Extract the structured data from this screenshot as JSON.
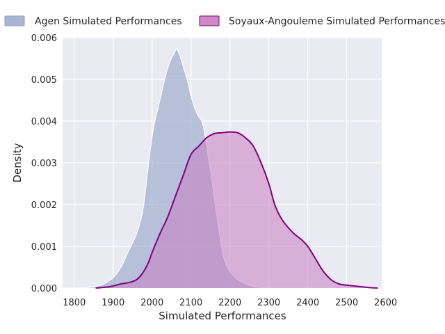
{
  "chart_data": {
    "type": "area",
    "title": "",
    "xlabel": "Simulated Performances",
    "ylabel": "Density",
    "xlim": [
      1770,
      2590
    ],
    "ylim": [
      0,
      0.006
    ],
    "x_ticks": [
      1800,
      1900,
      2000,
      2100,
      2200,
      2300,
      2400,
      2500,
      2600
    ],
    "y_ticks": [
      0,
      0.001,
      0.002,
      0.003,
      0.004,
      0.005,
      0.006
    ],
    "x_tick_labels": [
      "1800",
      "1900",
      "2000",
      "2100",
      "2200",
      "2300",
      "2400",
      "2500",
      "2600"
    ],
    "y_tick_labels": [
      "0.000",
      "0.001",
      "0.002",
      "0.003",
      "0.004",
      "0.005",
      "0.006"
    ],
    "grid": true,
    "legend_position": "top",
    "series": [
      {
        "name": "Agen Simulated Performances",
        "color": "#8b9dc3",
        "line_color": "#ffffff",
        "points": [
          [
            1805,
            0
          ],
          [
            1830,
            1e-05
          ],
          [
            1860,
            5e-05
          ],
          [
            1880,
            0.00012
          ],
          [
            1900,
            0.00025
          ],
          [
            1920,
            0.0005
          ],
          [
            1940,
            0.0009
          ],
          [
            1960,
            0.0013
          ],
          [
            1975,
            0.0018
          ],
          [
            1985,
            0.0025
          ],
          [
            1995,
            0.0033
          ],
          [
            2005,
            0.0039
          ],
          [
            2015,
            0.0043
          ],
          [
            2025,
            0.0047
          ],
          [
            2035,
            0.0051
          ],
          [
            2045,
            0.0054
          ],
          [
            2055,
            0.0056
          ],
          [
            2063,
            0.00572
          ],
          [
            2070,
            0.0056
          ],
          [
            2080,
            0.0053
          ],
          [
            2090,
            0.005
          ],
          [
            2100,
            0.0046
          ],
          [
            2110,
            0.0043
          ],
          [
            2120,
            0.0041
          ],
          [
            2128,
            0.004
          ],
          [
            2135,
            0.0037
          ],
          [
            2145,
            0.0031
          ],
          [
            2155,
            0.0025
          ],
          [
            2165,
            0.0018
          ],
          [
            2175,
            0.0012
          ],
          [
            2185,
            0.0007
          ],
          [
            2200,
            0.0004
          ],
          [
            2220,
            0.0002
          ],
          [
            2240,
            0.0001
          ],
          [
            2260,
            4e-05
          ],
          [
            2280,
            1e-05
          ],
          [
            2295,
            0
          ]
        ]
      },
      {
        "name": "Soyaux-Angouleme Simulated Performances",
        "color": "#c77dc1",
        "line_color": "#800080",
        "points": [
          [
            1855,
            0
          ],
          [
            1880,
            2e-05
          ],
          [
            1900,
            5e-05
          ],
          [
            1920,
            0.0001
          ],
          [
            1940,
            0.00013
          ],
          [
            1960,
            0.0002
          ],
          [
            1975,
            0.00035
          ],
          [
            1990,
            0.0006
          ],
          [
            2000,
            0.00085
          ],
          [
            2020,
            0.0013
          ],
          [
            2040,
            0.0017
          ],
          [
            2060,
            0.0022
          ],
          [
            2080,
            0.0027
          ],
          [
            2100,
            0.0032
          ],
          [
            2120,
            0.0034
          ],
          [
            2140,
            0.0036
          ],
          [
            2160,
            0.0037
          ],
          [
            2180,
            0.00372
          ],
          [
            2200,
            0.00374
          ],
          [
            2220,
            0.00372
          ],
          [
            2240,
            0.0036
          ],
          [
            2260,
            0.0034
          ],
          [
            2280,
            0.003
          ],
          [
            2300,
            0.0025
          ],
          [
            2315,
            0.002
          ],
          [
            2330,
            0.0017
          ],
          [
            2345,
            0.0015
          ],
          [
            2365,
            0.0013
          ],
          [
            2385,
            0.00115
          ],
          [
            2400,
            0.001
          ],
          [
            2420,
            0.0007
          ],
          [
            2440,
            0.0004
          ],
          [
            2460,
            0.0002
          ],
          [
            2480,
            0.0001
          ],
          [
            2500,
            7e-05
          ],
          [
            2520,
            5e-05
          ],
          [
            2540,
            3e-05
          ],
          [
            2560,
            1e-05
          ],
          [
            2580,
            0
          ]
        ]
      }
    ]
  }
}
